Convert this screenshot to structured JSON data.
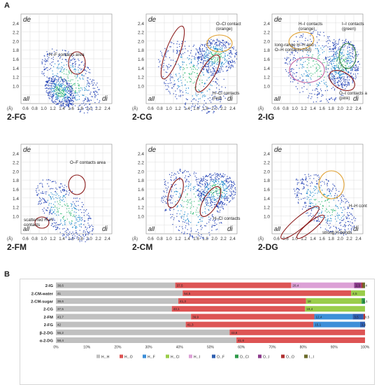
{
  "section_a_label": "A",
  "section_b_label": "B",
  "fingerprint": {
    "de_label": "de",
    "di_label": "di",
    "all_label": "all",
    "unit_label": "(Å)",
    "y_ticks": [
      "1.0",
      "1.2",
      "1.4",
      "1.6",
      "1.8",
      "2.0",
      "2.2",
      "2.4"
    ],
    "x_ticks": [
      "0.6",
      "0.8",
      "1.0",
      "1.2",
      "1.4",
      "1.6",
      "1.8",
      "2.0",
      "2.2",
      "2.4"
    ]
  },
  "panels": [
    {
      "id": "2-FG",
      "annotations": [
        {
          "text": "H–F contacts area",
          "color": "#222222"
        }
      ]
    },
    {
      "id": "2-CG",
      "annotations": [
        {
          "text": "O–Cl contacts (orange)",
          "color": "#222222"
        },
        {
          "text": "H–Cl contacts (red)",
          "color": "#222222"
        }
      ]
    },
    {
      "id": "2-IG",
      "annotations": [
        {
          "text": "H–I contacts (orange)",
          "color": "#222222"
        },
        {
          "text": "I–I contacts (green)",
          "color": "#222222"
        },
        {
          "text": "long-range H–H and O–H contacts (red)",
          "color": "#222222"
        },
        {
          "text": "O–I contacts area (pink)",
          "color": "#222222"
        }
      ]
    },
    {
      "id": "2-FM",
      "annotations": [
        {
          "text": "O–F contacts area",
          "color": "#222222"
        },
        {
          "text": "scatterred H–H contacts",
          "color": "#222222"
        }
      ]
    },
    {
      "id": "2-CM",
      "annotations": [
        {
          "text": "H–Cl contacts",
          "color": "#222222"
        }
      ]
    },
    {
      "id": "2-DG",
      "annotations": [
        {
          "text": "H–H contacts area",
          "color": "#222222"
        },
        {
          "text": "strong H-bonds",
          "color": "#222222"
        }
      ]
    }
  ],
  "colors": {
    "H_H": "#c0c0c0",
    "H_O": "#dd5454",
    "H_F": "#3d8fd8",
    "H_Cl": "#9acd4a",
    "H_I": "#dca0d6",
    "O_F": "#2f5fb0",
    "O_Cl": "#2e9a4a",
    "O_I": "#8b3a8b",
    "O_O": "#b03030",
    "I_I": "#6b6b2a",
    "ellipse_red": "#8b1a1a",
    "ellipse_orange": "#e0a030",
    "ellipse_green": "#2e7d3a",
    "ellipse_pink": "#c060a0"
  },
  "chart_data": {
    "type": "bar",
    "orientation": "horizontal",
    "stacked": true,
    "categories": [
      "2-IG",
      "2-CM-water",
      "2-CM-sugar",
      "2-CG",
      "2-FM",
      "2-FG",
      "β-2-DG",
      "α-2-DG"
    ],
    "xlim": [
      0,
      100
    ],
    "x_ticks": [
      "0%",
      "10%",
      "20%",
      "30%",
      "40%",
      "50%",
      "60%",
      "70%",
      "80%",
      "90%",
      "100%"
    ],
    "series": [
      {
        "name": "H...H",
        "color_key": "H_H",
        "values": [
          38.6,
          41,
          39.6,
          37.5,
          43.7,
          42,
          56.2,
          58.4
        ],
        "labels": [
          "38,6",
          "41",
          "39,6",
          "37,5",
          "43,7",
          "42",
          "56,2",
          "58,4"
        ]
      },
      {
        "name": "H...O",
        "color_key": "H_O",
        "values": [
          37.5,
          54.5,
          41.3,
          43.1,
          39.9,
          41.3,
          43.8,
          41.6
        ],
        "labels": [
          "37,5",
          "54,5",
          "41,3",
          "43,1",
          "39,9",
          "41,3",
          "43,8",
          "41,6"
        ]
      },
      {
        "name": "H...F",
        "color_key": "H_F",
        "values": [
          0,
          0,
          0,
          0,
          12.4,
          15.1,
          0,
          0
        ],
        "labels": [
          "",
          "",
          "",
          "",
          "12,4",
          "15,1",
          "",
          ""
        ]
      },
      {
        "name": "H...Cl",
        "color_key": "H_Cl",
        "values": [
          0,
          4.5,
          18,
          19.4,
          0,
          0,
          0,
          0
        ],
        "labels": [
          "",
          "4,5",
          "18",
          "19,4",
          "",
          "",
          "",
          ""
        ]
      },
      {
        "name": "H...I",
        "color_key": "H_I",
        "values": [
          20.4,
          0,
          0,
          0,
          0,
          0,
          0,
          0
        ],
        "labels": [
          "20,4",
          "",
          "",
          "",
          "",
          "",
          "",
          ""
        ]
      },
      {
        "name": "O...F",
        "color_key": "O_F",
        "values": [
          0,
          0,
          0,
          0,
          3.5,
          1.6,
          0,
          0
        ],
        "labels": [
          "",
          "",
          "",
          "",
          "3,5",
          "1,6",
          "",
          ""
        ]
      },
      {
        "name": "O...Cl",
        "color_key": "O_Cl",
        "values": [
          0,
          0,
          1.1,
          0,
          0,
          0,
          0,
          0
        ],
        "labels": [
          "",
          "",
          "1,1",
          "",
          "",
          "",
          "",
          ""
        ]
      },
      {
        "name": "O...I",
        "color_key": "O_I",
        "values": [
          2.3,
          0,
          0,
          0,
          0,
          0,
          0,
          0
        ],
        "labels": [
          "2,3",
          "",
          "",
          "",
          "",
          "",
          "",
          ""
        ]
      },
      {
        "name": "O...O",
        "color_key": "O_O",
        "values": [
          0.4,
          0,
          0,
          0,
          0.5,
          0,
          0,
          0
        ],
        "labels": [
          "0,4",
          "",
          "",
          "",
          "0,5",
          "",
          "",
          ""
        ]
      },
      {
        "name": "I...I",
        "color_key": "I_I",
        "values": [
          0.8,
          0,
          0,
          0,
          0,
          0,
          0,
          0
        ],
        "labels": [
          "",
          "",
          "",
          "",
          "",
          "",
          "",
          ""
        ]
      }
    ],
    "legend_position": "bottom"
  }
}
